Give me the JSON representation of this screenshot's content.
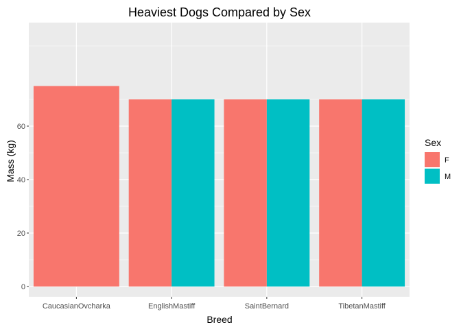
{
  "chart_data": {
    "type": "bar",
    "title": "Heaviest Dogs Compared by Sex",
    "xlabel": "Breed",
    "ylabel": "Mass (kg)",
    "categories": [
      "CaucasianOvcharka",
      "EnglishMastiff",
      "SaintBernard",
      "TibetanMastiff"
    ],
    "series": [
      {
        "name": "F",
        "values": [
          75,
          70,
          70,
          70
        ],
        "color": "#F8766D"
      },
      {
        "name": "M",
        "values": [
          null,
          70,
          70,
          70
        ],
        "color": "#00BFC4"
      }
    ],
    "ylim": [
      0,
      80
    ],
    "yticks": [
      0,
      20,
      40,
      60
    ],
    "grid": true,
    "legend": {
      "title": "Sex",
      "position": "right"
    },
    "panel_background": "#EBEBEB"
  }
}
